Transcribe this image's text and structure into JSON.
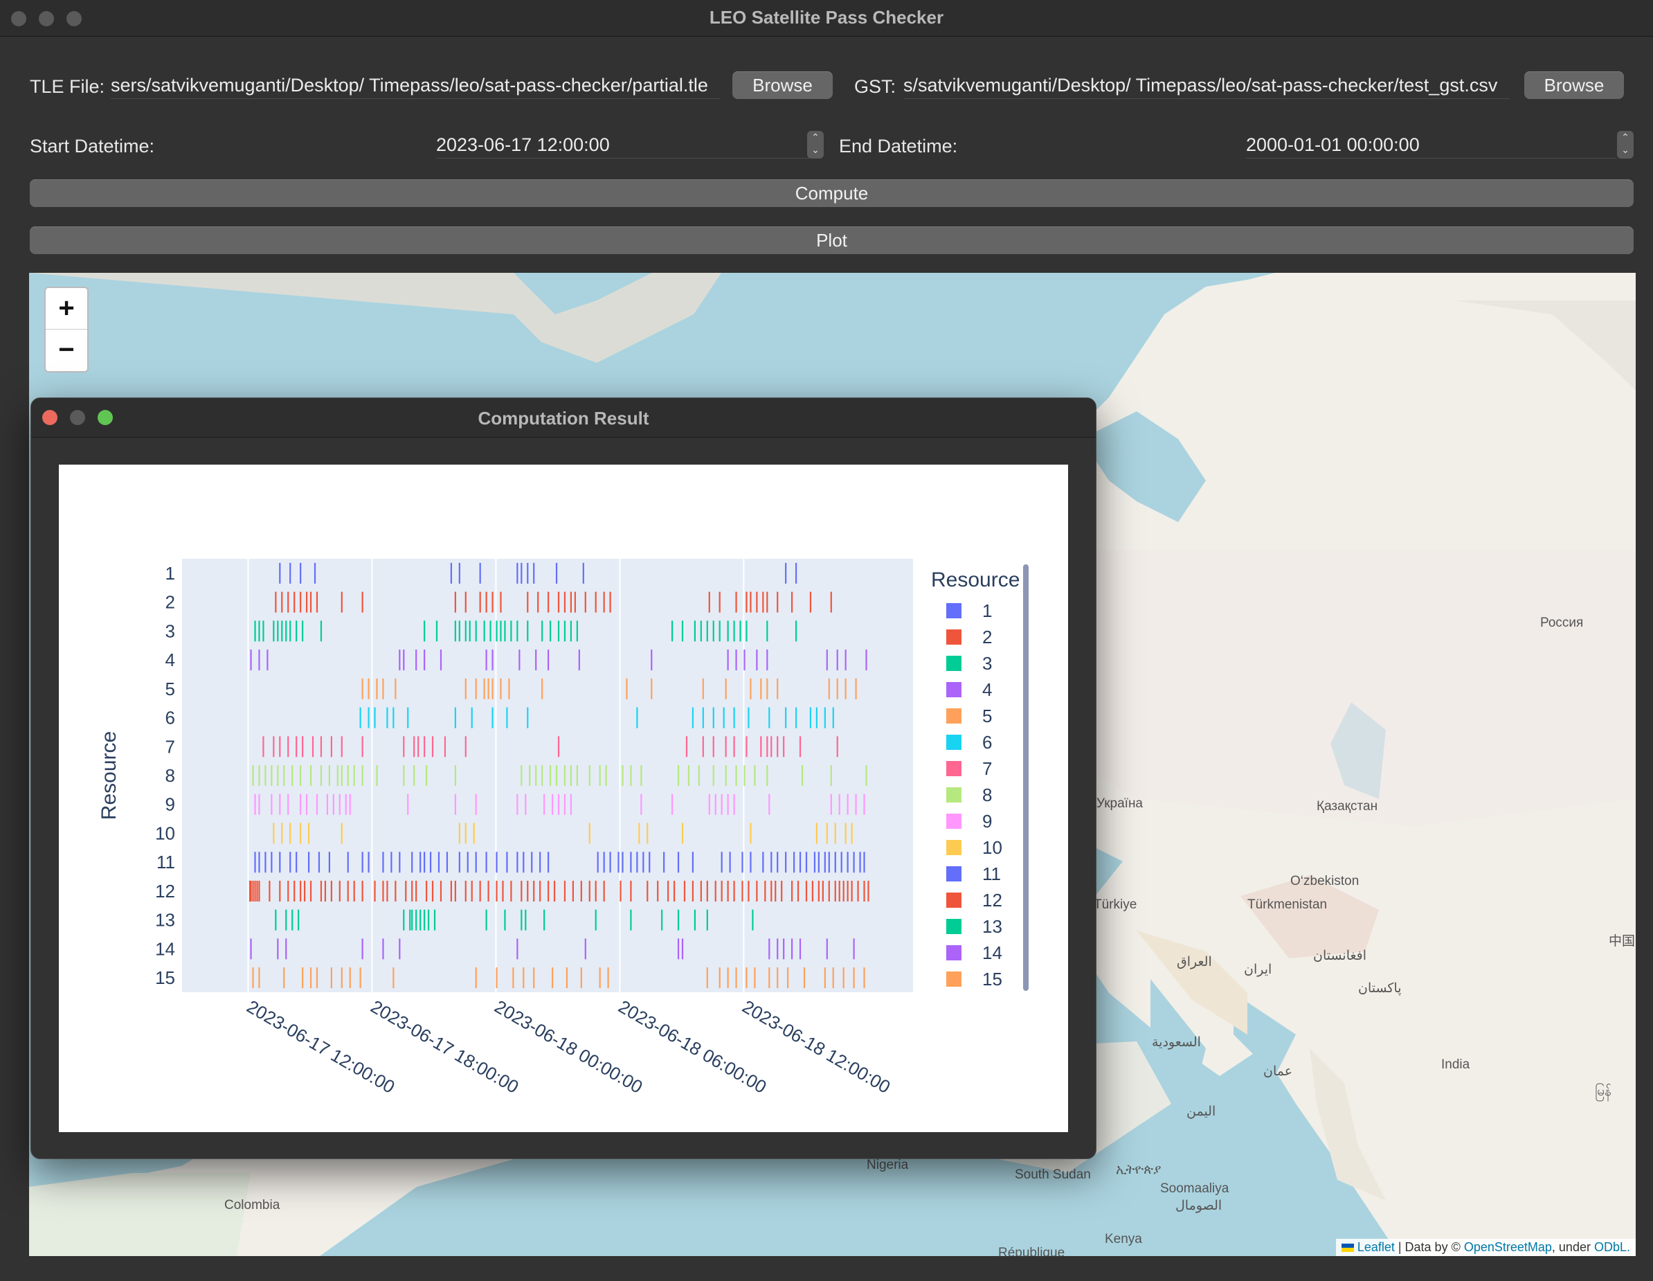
{
  "window": {
    "title": "LEO Satellite Pass Checker"
  },
  "form": {
    "tle_label": "TLE File:",
    "tle_value": "sers/satvikvemuganti/Desktop/ Timepass/leo/sat-pass-checker/partial.tle",
    "browse_label": "Browse",
    "gst_label": "GST:",
    "gst_value": "s/satvikvemuganti/Desktop/ Timepass/leo/sat-pass-checker/test_gst.csv",
    "start_label": "Start Datetime:",
    "start_value": "2023-06-17 12:00:00",
    "end_label": "End Datetime:",
    "end_value": "2000-01-01 00:00:00",
    "compute_label": "Compute",
    "plot_label": "Plot"
  },
  "map": {
    "zoom_in": "+",
    "zoom_out": "−",
    "labels": [
      "Россия",
      "Қазақстан",
      "O‘zbekiston",
      "Türkmenistan",
      "Türkiye",
      "العراق",
      "ایران",
      "افغانستان",
      "پاکستان",
      "السعودية",
      "India",
      "عمان",
      "اليمن",
      "Nigeria",
      "South Sudan",
      "ኢትዮጵያ",
      "Soomaaliya",
      "الصومال",
      "Kenya",
      "Colombia",
      "中国",
      "République",
      "Україна",
      "မြန်"
    ],
    "attribution": {
      "leaflet": "Leaflet",
      "data_by": " | Data by © ",
      "osm": "OpenStreetMap",
      "under": ", under ",
      "odbl": "ODbL."
    }
  },
  "dialog": {
    "title": "Computation Result"
  },
  "chart_data": {
    "type": "timeline",
    "ylabel": "Resource",
    "legend_title": "Resource",
    "resources": [
      "1",
      "2",
      "3",
      "4",
      "5",
      "6",
      "7",
      "8",
      "9",
      "10",
      "11",
      "12",
      "13",
      "14",
      "15"
    ],
    "x_ticks": [
      "2023-06-17 12:00:00",
      "2023-06-17 18:00:00",
      "2023-06-18 00:00:00",
      "2023-06-18 06:00:00",
      "2023-06-18 12:00:00"
    ],
    "colors": [
      "#636efa",
      "#EF553B",
      "#00cc96",
      "#ab63fa",
      "#FFA15A",
      "#19d3f3",
      "#FF6692",
      "#B6E880",
      "#FF97FF",
      "#FECB52",
      "#636efa",
      "#EF553B",
      "#00cc96",
      "#ab63fa",
      "#FFA15A"
    ],
    "pass_hours": [
      [
        1.5,
        2.0,
        2.5,
        3.2,
        9.8,
        10.2,
        11.2,
        13.0,
        13.2,
        13.5,
        13.8,
        14.9,
        16.2,
        26.0,
        26.5
      ],
      [
        1.3,
        1.6,
        1.9,
        2.2,
        2.5,
        2.8,
        3.0,
        3.3,
        4.5,
        5.5,
        10.0,
        10.5,
        11.2,
        11.5,
        11.8,
        12.2,
        13.5,
        14.0,
        14.5,
        15.0,
        15.3,
        15.6,
        15.8,
        16.3,
        16.8,
        17.2,
        17.5,
        22.3,
        22.8,
        23.6,
        24.1,
        24.3,
        24.6,
        24.9,
        25.1,
        25.6,
        26.3,
        27.2,
        28.2
      ],
      [
        0.3,
        0.5,
        0.7,
        1.2,
        1.4,
        1.6,
        1.8,
        2.0,
        2.3,
        2.6,
        3.5,
        8.5,
        9.1,
        10.0,
        10.2,
        10.5,
        10.7,
        11.0,
        11.4,
        11.7,
        12.0,
        12.2,
        12.4,
        12.7,
        13.0,
        13.5,
        14.2,
        14.6,
        15.0,
        15.3,
        15.6,
        15.9,
        20.5,
        21.0,
        21.6,
        21.9,
        22.2,
        22.5,
        22.8,
        23.2,
        23.5,
        23.8,
        24.1,
        25.1,
        26.5
      ],
      [
        0.1,
        0.5,
        0.9,
        7.3,
        7.5,
        8.1,
        8.5,
        9.3,
        11.5,
        11.8,
        13.1,
        13.9,
        14.5,
        16.0,
        19.5,
        23.2,
        23.6,
        24.0,
        24.6,
        25.1,
        28.0,
        28.5,
        28.9,
        29.9
      ],
      [
        5.5,
        5.8,
        6.2,
        6.5,
        7.1,
        10.5,
        11.0,
        11.4,
        11.6,
        11.8,
        12.2,
        12.6,
        14.2,
        18.3,
        19.5,
        22.0,
        23.1,
        24.3,
        24.8,
        25.1,
        25.6,
        28.1,
        28.5,
        28.9,
        29.4
      ],
      [
        5.4,
        5.8,
        6.1,
        6.7,
        7.0,
        7.7,
        10.0,
        10.8,
        11.8,
        12.5,
        13.5,
        18.8,
        21.5,
        22.0,
        22.5,
        23.0,
        23.5,
        24.2,
        25.2,
        26.0,
        26.5,
        27.2,
        27.5,
        27.9,
        28.3
      ],
      [
        0.7,
        1.2,
        1.5,
        1.9,
        2.3,
        2.6,
        3.1,
        3.5,
        4.0,
        4.5,
        5.5,
        7.5,
        8.0,
        8.2,
        8.5,
        8.9,
        9.5,
        10.5,
        15.0,
        21.2,
        22.0,
        22.5,
        23.1,
        23.5,
        24.1,
        24.8,
        25.1,
        25.3,
        25.6,
        25.9,
        26.7,
        28.5
      ],
      [
        0.2,
        0.5,
        0.8,
        1.1,
        1.4,
        1.7,
        2.1,
        2.5,
        3.0,
        3.5,
        3.9,
        4.3,
        4.5,
        4.8,
        5.1,
        5.5,
        6.2,
        7.5,
        8.0,
        8.6,
        10.0,
        13.2,
        13.6,
        13.9,
        14.2,
        14.6,
        14.9,
        15.3,
        15.6,
        15.9,
        16.5,
        17.0,
        17.3,
        18.1,
        18.5,
        19.0,
        20.8,
        21.3,
        21.8,
        22.5,
        23.1,
        23.6,
        24.0,
        24.5,
        25.1,
        26.8,
        28.2,
        29.9
      ],
      [
        0.3,
        0.5,
        1.1,
        1.5,
        1.9,
        2.5,
        2.8,
        3.3,
        3.8,
        4.1,
        4.4,
        4.7,
        4.9,
        7.7,
        10.0,
        11.0,
        13.0,
        13.4,
        14.3,
        14.7,
        15.0,
        15.3,
        15.6,
        19.0,
        20.5,
        22.3,
        22.6,
        22.9,
        23.2,
        23.5,
        25.2,
        28.2,
        28.6,
        29.0,
        29.4,
        29.8
      ],
      [
        1.2,
        1.6,
        2.0,
        2.5,
        2.9,
        4.5,
        10.2,
        10.5,
        10.9,
        16.5,
        18.9,
        19.3,
        21.0,
        24.3,
        27.5,
        28.0,
        28.4,
        28.9,
        29.2
      ],
      [
        0.3,
        0.5,
        0.8,
        1.1,
        1.5,
        2.0,
        2.3,
        2.9,
        3.4,
        3.9,
        4.8,
        5.5,
        5.8,
        6.5,
        6.9,
        7.3,
        7.9,
        8.3,
        8.5,
        8.8,
        9.2,
        9.6,
        10.2,
        10.6,
        11.0,
        11.5,
        12.0,
        12.5,
        13.0,
        13.3,
        13.7,
        14.1,
        14.5,
        16.9,
        17.2,
        17.5,
        17.9,
        18.1,
        18.5,
        18.8,
        19.1,
        19.4,
        20.1,
        20.8,
        21.5,
        22.9,
        23.3,
        23.9,
        24.3,
        24.9,
        25.3,
        25.6,
        26.0,
        26.4,
        26.7,
        27.0,
        27.4,
        27.6,
        27.9,
        28.1,
        28.4,
        28.7,
        29.0,
        29.3,
        29.6,
        29.8
      ],
      [
        0.05,
        0.1,
        0.2,
        0.3,
        0.4,
        0.5,
        1.0,
        1.5,
        1.9,
        2.2,
        2.5,
        2.7,
        3.0,
        3.5,
        3.7,
        4.0,
        4.4,
        4.8,
        5.1,
        5.5,
        6.1,
        6.5,
        6.7,
        7.1,
        7.6,
        7.9,
        8.1,
        8.6,
        8.9,
        9.3,
        9.8,
        10.0,
        10.5,
        10.8,
        11.2,
        11.6,
        12.0,
        12.3,
        12.7,
        13.2,
        13.5,
        13.8,
        14.1,
        14.5,
        14.8,
        15.3,
        15.7,
        16.1,
        16.5,
        16.8,
        17.2,
        18.0,
        18.5,
        19.3,
        19.8,
        20.3,
        20.6,
        21.1,
        21.5,
        21.9,
        22.2,
        22.6,
        22.9,
        23.2,
        23.5,
        23.9,
        24.2,
        24.6,
        25.0,
        25.3,
        25.5,
        25.8,
        26.3,
        26.6,
        27.0,
        27.3,
        27.6,
        27.8,
        28.1,
        28.4,
        28.6,
        28.8,
        29.0,
        29.2,
        29.5,
        29.8,
        30.0
      ],
      [
        1.3,
        1.8,
        2.1,
        2.4,
        7.5,
        7.8,
        7.9,
        8.1,
        8.3,
        8.5,
        8.7,
        9.0,
        11.5,
        12.4,
        13.2,
        13.4,
        14.3,
        16.8,
        18.5,
        20.0,
        20.8,
        21.6,
        22.2,
        24.4
      ],
      [
        0.1,
        1.4,
        1.8,
        5.5,
        6.5,
        7.3,
        13.0,
        16.3,
        20.8,
        21.0,
        25.2,
        25.6,
        25.9,
        26.3,
        26.7,
        28.0,
        29.3
      ],
      [
        0.2,
        0.5,
        1.7,
        2.6,
        3.0,
        3.3,
        4.0,
        4.5,
        4.9,
        5.4,
        7.0,
        11.0,
        12.0,
        12.8,
        13.3,
        13.8,
        14.7,
        15.4,
        16.1,
        17.0,
        17.4,
        22.2,
        22.8,
        23.2,
        23.6,
        24.1,
        24.5,
        25.2,
        25.6,
        26.1,
        26.9,
        27.9,
        28.3,
        28.8,
        29.3,
        29.8
      ]
    ]
  }
}
